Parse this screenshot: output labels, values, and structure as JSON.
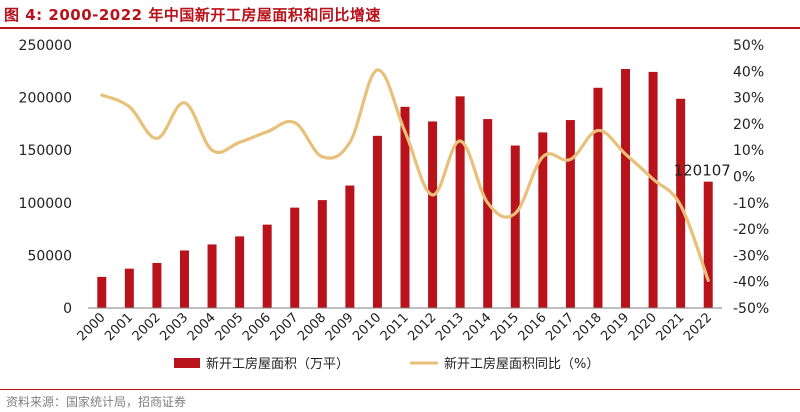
{
  "header": {
    "title": "图 4:  2000-2022 年中国新开工房屋面积和同比增速"
  },
  "footer": {
    "source": "资料来源：国家统计局，招商证券"
  },
  "chart_data": {
    "type": "bar+line",
    "title": "2000-2022 年中国新开工房屋面积和同比增速",
    "categories": [
      "2000",
      "2001",
      "2002",
      "2003",
      "2004",
      "2005",
      "2006",
      "2007",
      "2008",
      "2009",
      "2010",
      "2011",
      "2012",
      "2013",
      "2014",
      "2015",
      "2016",
      "2017",
      "2018",
      "2019",
      "2020",
      "2021",
      "2022"
    ],
    "series": [
      {
        "name": "新开工房屋面积（万平）",
        "type": "bar",
        "axis": "left",
        "color": "#B8121B",
        "values": [
          29583,
          37394,
          42801,
          54708,
          60414,
          68064,
          79253,
          95402,
          102553,
          116422,
          163647,
          191237,
          177334,
          201208,
          179592,
          154454,
          166928,
          178654,
          209342,
          227154,
          224433,
          198895,
          120107
        ]
      },
      {
        "name": "新开工房屋面积同比（%）",
        "type": "line",
        "axis": "right",
        "color": "#E8C07A",
        "values": [
          31,
          26.5,
          14.5,
          28,
          10,
          13,
          17,
          20.5,
          7.5,
          13,
          40.5,
          17,
          -7,
          13.5,
          -10,
          -14,
          7.5,
          6.5,
          17.5,
          8.5,
          -1,
          -11,
          -39.5
        ]
      }
    ],
    "y_left": {
      "min": 0,
      "max": 250000,
      "ticks": [
        0,
        50000,
        100000,
        150000,
        200000,
        250000
      ]
    },
    "y_right": {
      "min": -50,
      "max": 50,
      "ticks": [
        "50%",
        "40%",
        "30%",
        "20%",
        "10%",
        "0%",
        "-10%",
        "-20%",
        "-30%",
        "-40%",
        "-50%"
      ]
    },
    "annotation": {
      "label": "120107",
      "category": "2022"
    },
    "legend": {
      "position": "bottom",
      "entries": [
        "新开工房屋面积（万平）",
        "新开工房屋面积同比（%）"
      ]
    },
    "grid": false
  }
}
